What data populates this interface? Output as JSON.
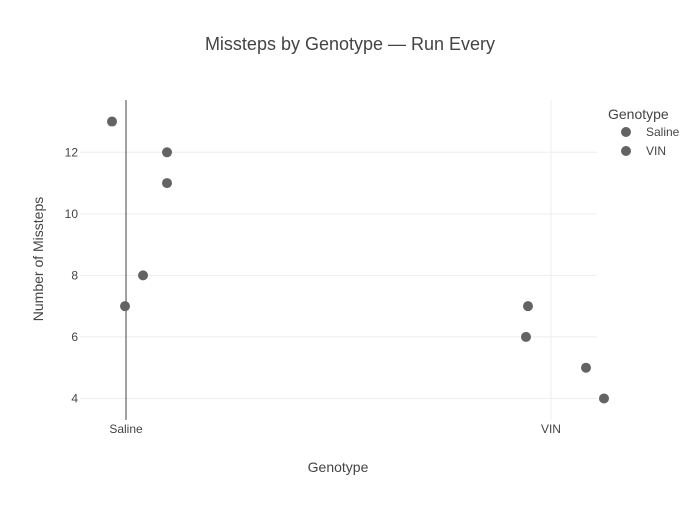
{
  "chart_data": {
    "type": "scatter",
    "title": "Missteps by Genotype — Run Every",
    "xlabel": "Genotype",
    "ylabel": "Number of Missteps",
    "categories": [
      "Saline",
      "VIN"
    ],
    "ylim": [
      3.3,
      13.7
    ],
    "yticks": [
      4,
      6,
      8,
      10,
      12
    ],
    "grid": true,
    "legend": {
      "title": "Genotype",
      "placement": "top-right",
      "entries": [
        "Saline",
        "VIN"
      ]
    },
    "marker_color": "#636363",
    "series": [
      {
        "name": "Saline",
        "category": "Saline",
        "values": [
          13,
          12,
          11,
          8,
          7
        ]
      },
      {
        "name": "VIN",
        "category": "VIN",
        "values": [
          7,
          6,
          5,
          4
        ]
      }
    ]
  }
}
